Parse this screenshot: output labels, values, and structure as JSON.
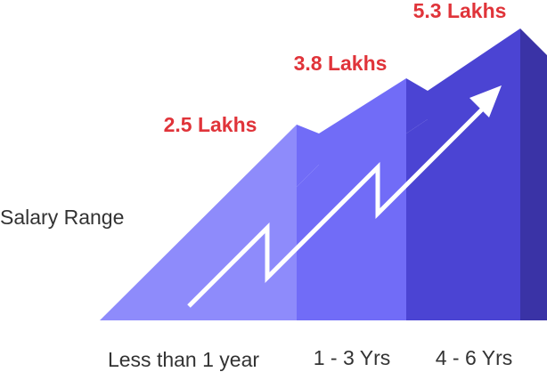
{
  "chart_data": {
    "type": "bar",
    "categories": [
      "Less than 1 year",
      "1 - 3 Yrs",
      "4 - 6 Yrs"
    ],
    "values": [
      2.5,
      3.8,
      5.3
    ],
    "value_labels": [
      "2.5 Lakhs",
      "3.8 Lakhs",
      "5.3 Lakhs"
    ],
    "ylabel": "Salary Range",
    "unit": "Lakhs",
    "colors": [
      "#8e8bfb",
      "#716cf7",
      "#4b44d3",
      "#3a33a6"
    ],
    "arrow_color": "#ffffff",
    "label_color": "#e0343a"
  }
}
